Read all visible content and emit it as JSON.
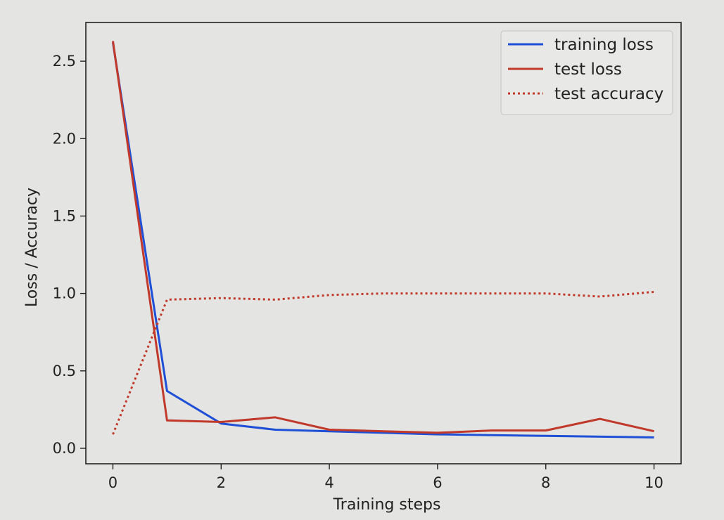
{
  "chart_data": {
    "type": "line",
    "xlabel": "Training steps",
    "ylabel": "Loss / Accuracy",
    "xlim": [
      -0.5,
      10.5
    ],
    "ylim": [
      -0.1,
      2.75
    ],
    "xticks": [
      0,
      2,
      4,
      6,
      8,
      10
    ],
    "xtick_labels": [
      "0",
      "2",
      "4",
      "6",
      "8",
      "10"
    ],
    "yticks": [
      0.0,
      0.5,
      1.0,
      1.5,
      2.0,
      2.5
    ],
    "ytick_labels": [
      "0.0",
      "0.5",
      "1.0",
      "1.5",
      "2.0",
      "2.5"
    ],
    "grid": false,
    "legend_position": "top-right",
    "x": [
      0,
      1,
      2,
      3,
      4,
      5,
      6,
      7,
      8,
      9,
      10
    ],
    "series": [
      {
        "name": "training loss",
        "color": "#1f4fd6",
        "style": "solid",
        "values": [
          2.62,
          0.37,
          0.16,
          0.12,
          0.11,
          0.1,
          0.09,
          0.085,
          0.08,
          0.075,
          0.07
        ]
      },
      {
        "name": "test loss",
        "color": "#c0392b",
        "style": "solid",
        "values": [
          2.63,
          0.18,
          0.17,
          0.2,
          0.12,
          0.11,
          0.1,
          0.115,
          0.115,
          0.19,
          0.11
        ]
      },
      {
        "name": "test accuracy",
        "color": "#c0392b",
        "style": "dotted",
        "values": [
          0.09,
          0.96,
          0.97,
          0.96,
          0.99,
          1.0,
          1.0,
          1.0,
          1.0,
          0.98,
          1.01
        ]
      }
    ]
  }
}
